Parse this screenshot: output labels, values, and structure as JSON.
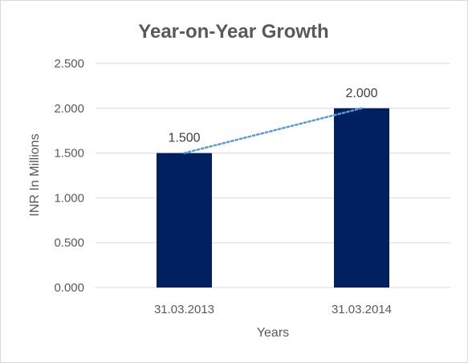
{
  "chart_data": {
    "type": "bar",
    "title": "Year-on-Year Growth",
    "xlabel": "Years",
    "ylabel": "INR In Millions",
    "categories": [
      "31.03.2013",
      "31.03.2014"
    ],
    "values": [
      1.5,
      2.0
    ],
    "value_labels": [
      "1.500",
      "2.000"
    ],
    "ylim": [
      0,
      2.5
    ],
    "y_ticks": [
      0,
      0.5,
      1.0,
      1.5,
      2.0,
      2.5
    ],
    "y_tick_labels": [
      "0.000",
      "0.500",
      "1.000",
      "1.500",
      "2.000",
      "2.500"
    ],
    "grid": true,
    "trendline": "linear, dotted",
    "colors": {
      "bar": "#002060",
      "trendline": "#5b9bd5",
      "gridline": "#d9d9d9",
      "text": "#595959",
      "border": "#d9d9d9"
    }
  }
}
